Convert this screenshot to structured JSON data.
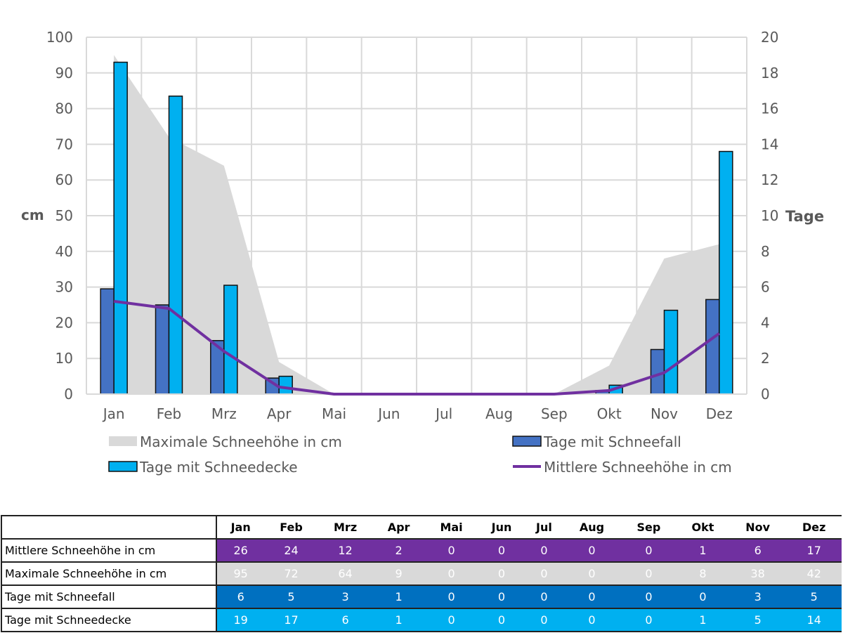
{
  "chart_data": {
    "type": "bar",
    "categories": [
      "Jan",
      "Feb",
      "Mrz",
      "Apr",
      "Mai",
      "Jun",
      "Jul",
      "Aug",
      "Sep",
      "Okt",
      "Nov",
      "Dez"
    ],
    "y_left": {
      "label": "cm",
      "range": [
        0,
        100
      ],
      "ticks": [
        0,
        10,
        20,
        30,
        40,
        50,
        60,
        70,
        80,
        90,
        100
      ]
    },
    "y_right": {
      "label": "Tage",
      "range": [
        0,
        20
      ],
      "ticks": [
        0,
        2,
        4,
        6,
        8,
        10,
        12,
        14,
        16,
        18,
        20
      ]
    },
    "grid": true,
    "legend_position": "bottom",
    "series": [
      {
        "name": "Maximale Schneehöhe in cm",
        "kind": "area",
        "axis": "left",
        "color": "#d9d9d9",
        "values": [
          95,
          72,
          64,
          9,
          0,
          0,
          0,
          0,
          0,
          8,
          38,
          42
        ]
      },
      {
        "name": "Tage mit Schneefall",
        "kind": "bar",
        "axis": "right",
        "color": "#4472c4",
        "values": [
          5.9,
          5,
          3,
          0.9,
          0,
          0,
          0,
          0,
          0,
          0.2,
          2.5,
          5.3
        ]
      },
      {
        "name": "Tage mit Schneedecke",
        "kind": "bar",
        "axis": "right",
        "color": "#00b0f0",
        "values": [
          18.6,
          16.7,
          6.1,
          1,
          0,
          0,
          0,
          0,
          0,
          0.5,
          4.7,
          13.6
        ]
      },
      {
        "name": "Mittlere Schneehöhe in cm",
        "kind": "line",
        "axis": "left",
        "color": "#7030a0",
        "values": [
          26,
          24,
          12,
          2,
          0,
          0,
          0,
          0,
          0,
          1,
          6,
          17
        ]
      }
    ]
  },
  "table": {
    "header": [
      "Jan",
      "Feb",
      "Mrz",
      "Apr",
      "Mai",
      "Jun",
      "Jul",
      "Aug",
      "Sep",
      "Okt",
      "Nov",
      "Dez"
    ],
    "rows": [
      {
        "label": "Mittlere Schneehöhe in cm",
        "color": "#7030a0",
        "values": [
          "26",
          "24",
          "12",
          "2",
          "0",
          "0",
          "0",
          "0",
          "0",
          "1",
          "6",
          "17"
        ]
      },
      {
        "label": "Maximale Schneehöhe in cm",
        "color": "#d9d9d9",
        "values": [
          "95",
          "72",
          "64",
          "9",
          "0",
          "0",
          "0",
          "0",
          "0",
          "8",
          "38",
          "42"
        ]
      },
      {
        "label": "Tage mit Schneefall",
        "color": "#0070c0",
        "values": [
          "6",
          "5",
          "3",
          "1",
          "0",
          "0",
          "0",
          "0",
          "0",
          "0",
          "3",
          "5"
        ]
      },
      {
        "label": "Tage mit Schneedecke",
        "color": "#00b0f0",
        "values": [
          "19",
          "17",
          "6",
          "1",
          "0",
          "0",
          "0",
          "0",
          "0",
          "1",
          "5",
          "14"
        ]
      }
    ]
  }
}
